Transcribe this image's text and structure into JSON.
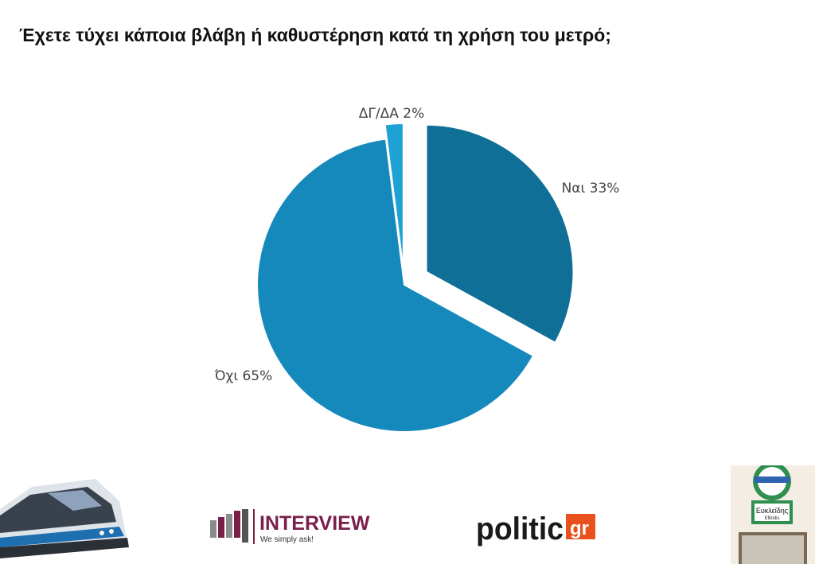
{
  "title": "Έχετε τύχει κάποια βλάβη ή καθυστέρηση κατά τη χρήση του μετρό;",
  "chart_data": {
    "type": "pie",
    "title": "Έχετε τύχει κάποια βλάβη ή καθυστέρηση κατά τη χρήση του μετρό;",
    "slices": [
      {
        "label": "Ναι 33%",
        "value": 33,
        "color": "#0f6f96"
      },
      {
        "label": "Όχι 65%",
        "value": 65,
        "color": "#1589bb"
      },
      {
        "label": "ΔΓ/ΔΑ 2%",
        "value": 2,
        "color": "#1ea2d6"
      }
    ],
    "exploded": true
  },
  "logos": {
    "interview_name": "INTERVIEW",
    "interview_tagline": "We simply ask!",
    "politic_name": "politic",
    "politic_suffix": "gr",
    "sign_name": "Ευκλείδης",
    "sign_name_latin": "Efklidis"
  },
  "colors": {
    "interview_brand": "#7a1f4b",
    "politic_text": "#1a1a1a",
    "politic_badge": "#e8501c",
    "sign_frame": "#2f8f4e"
  }
}
